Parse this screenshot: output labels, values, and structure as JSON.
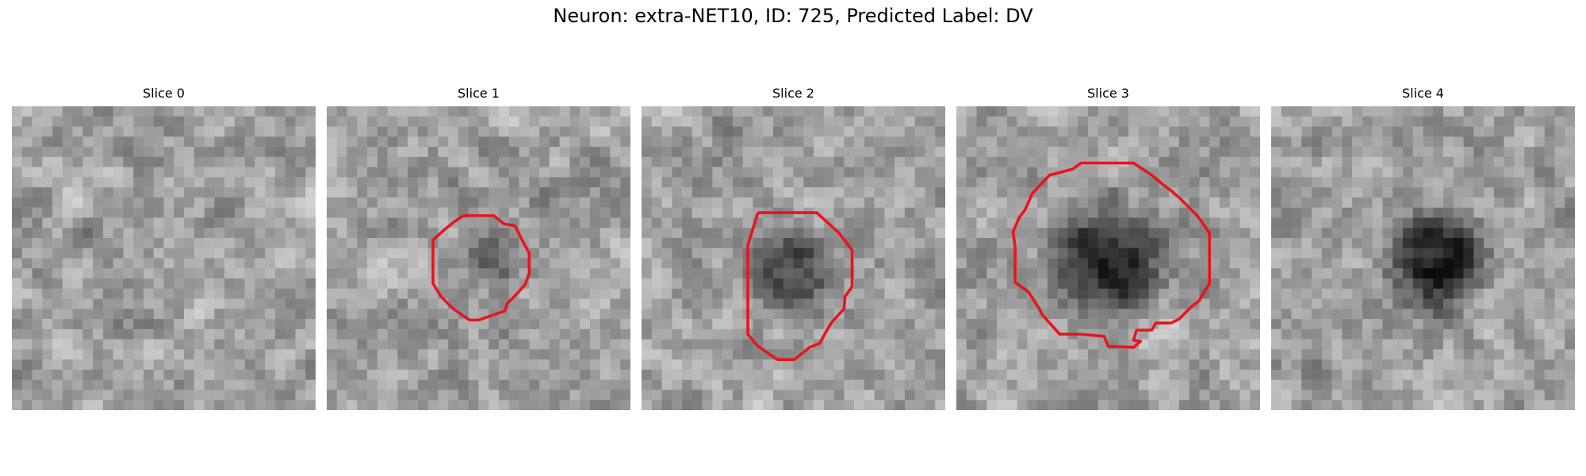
{
  "figure": {
    "title": "Neuron: extra-NET10, ID: 725, Predicted Label: DV"
  },
  "panels": [
    {
      "title": "Slice 0",
      "has_contour": false,
      "dark_blob_strength": 0.05,
      "contour_color": "#e8141c"
    },
    {
      "title": "Slice 1",
      "has_contour": true,
      "dark_blob_strength": 0.45,
      "contour_color": "#e8141c"
    },
    {
      "title": "Slice 2",
      "has_contour": true,
      "dark_blob_strength": 0.6,
      "contour_color": "#e8141c"
    },
    {
      "title": "Slice 3",
      "has_contour": true,
      "dark_blob_strength": 0.75,
      "contour_color": "#e8141c"
    },
    {
      "title": "Slice 4",
      "has_contour": false,
      "dark_blob_strength": 0.85,
      "contour_color": "#e8141c"
    }
  ],
  "colors": {
    "background": "#ffffff",
    "contour": "#e8141c"
  }
}
